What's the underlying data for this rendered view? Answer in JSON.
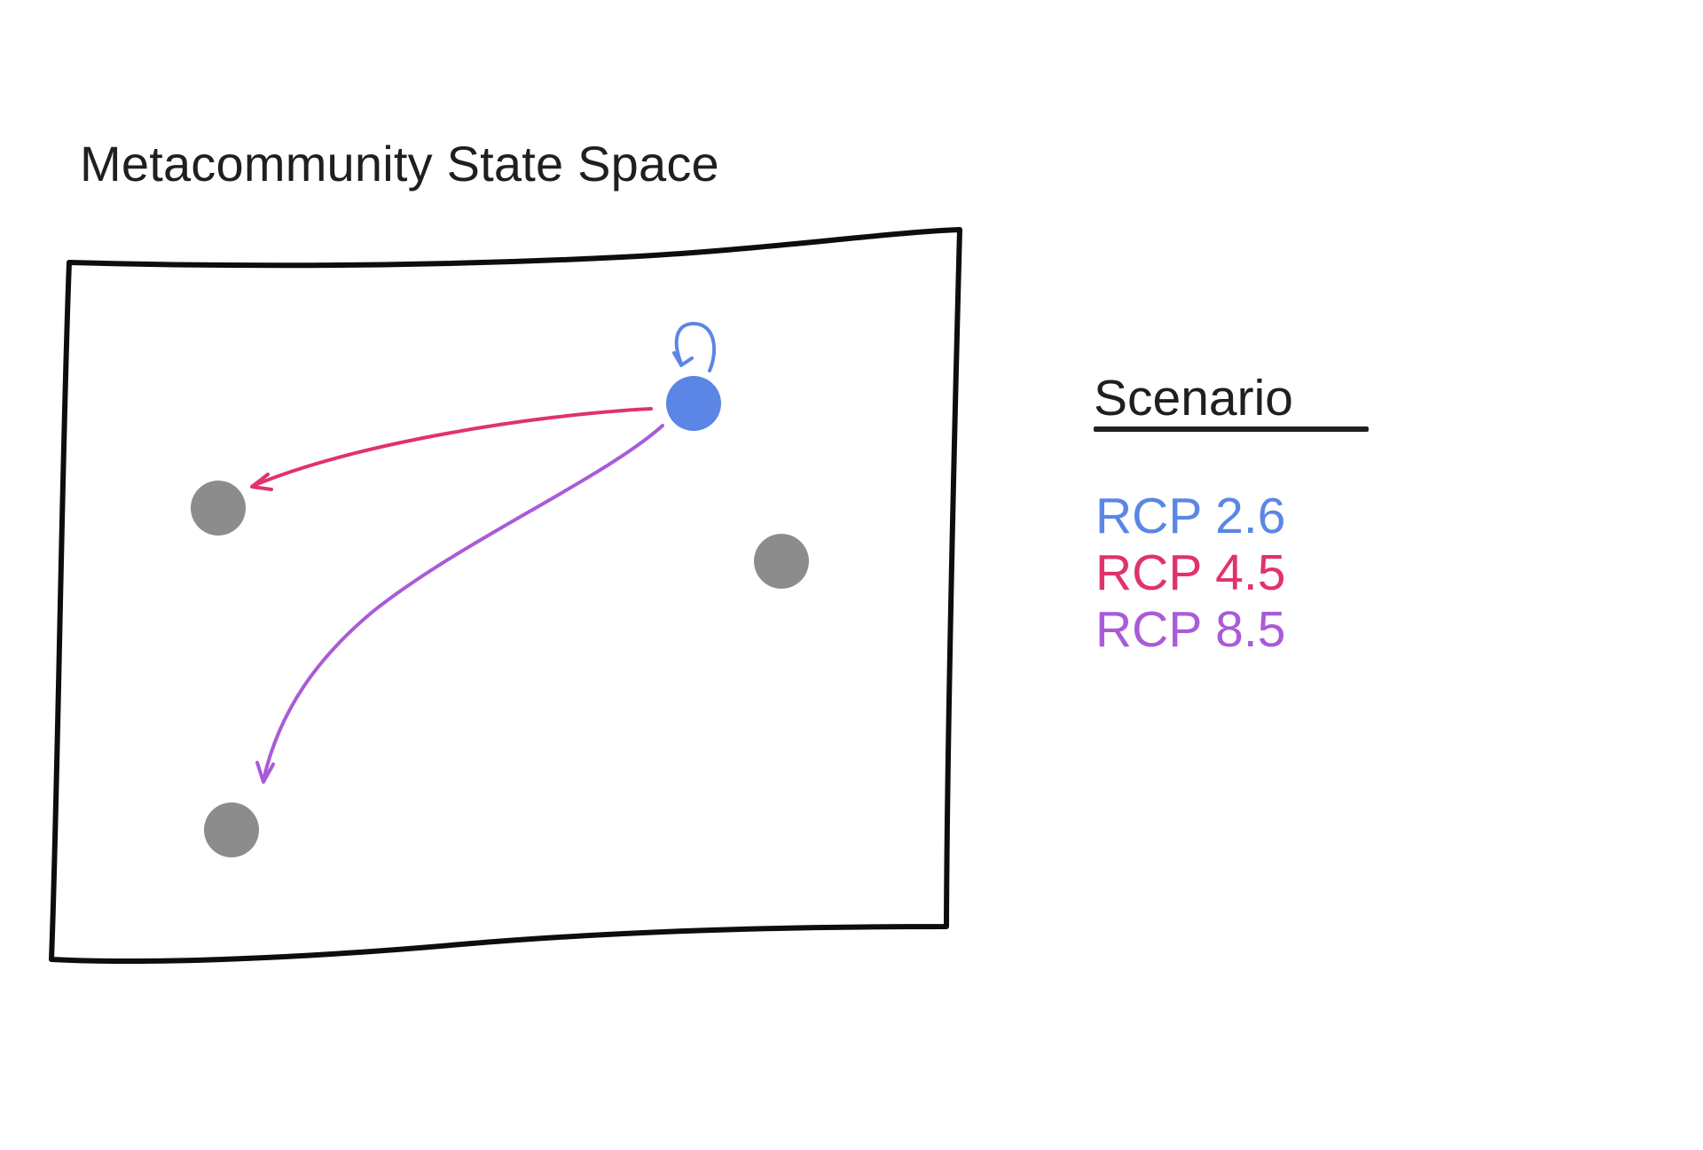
{
  "title": "Metacommunity State Space",
  "legend": {
    "heading": "Scenario",
    "items": [
      {
        "label": "RCP 2.6",
        "color": "#5b86e5"
      },
      {
        "label": "RCP 4.5",
        "color": "#e0336b"
      },
      {
        "label": "RCP 8.5",
        "color": "#a95bd8"
      }
    ]
  },
  "colors": {
    "frame": "#0d0d0d",
    "current_state": "#5b86e5",
    "other_states": "#8c8c8c",
    "self_loop": "#5b86e5",
    "arrow_rcp45": "#e0336b",
    "arrow_rcp85": "#a95bd8"
  }
}
